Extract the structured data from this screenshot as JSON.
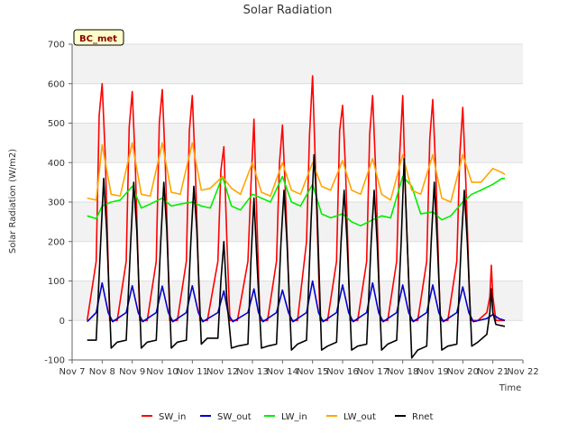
{
  "chart_data": {
    "type": "line",
    "title": "Solar Radiation",
    "site_label": "BC_met",
    "xlabel": "Time",
    "ylabel": "Solar Radiation (W/m2)",
    "ylim": [
      -100,
      700
    ],
    "yticks": [
      -100,
      0,
      100,
      200,
      300,
      400,
      500,
      600,
      700
    ],
    "xlim": [
      7,
      22
    ],
    "xticks": [
      7,
      8,
      9,
      10,
      11,
      12,
      13,
      14,
      15,
      16,
      17,
      18,
      19,
      20,
      21,
      22
    ],
    "xtick_labels": [
      "Nov 7",
      "Nov 8",
      "Nov 9",
      "Nov 10",
      "Nov 11",
      "Nov 12",
      "Nov 13",
      "Nov 14",
      "Nov 15",
      "Nov 16",
      "Nov 17",
      "Nov 18",
      "Nov 19",
      "Nov 20",
      "Nov 21",
      "Nov 22"
    ],
    "grid": true,
    "legend_position": "bottom",
    "series": [
      {
        "name": "SW_in",
        "color": "#ff0000",
        "x": [
          7.5,
          7.8,
          7.9,
          8.0,
          8.1,
          8.25,
          8.5,
          8.8,
          8.9,
          9.0,
          9.1,
          9.25,
          9.5,
          9.8,
          9.9,
          10.0,
          10.1,
          10.25,
          10.5,
          10.8,
          10.9,
          11.0,
          11.1,
          11.25,
          11.5,
          11.85,
          11.95,
          12.05,
          12.15,
          12.25,
          12.5,
          12.85,
          12.95,
          13.05,
          13.15,
          13.25,
          13.5,
          13.8,
          13.9,
          14.0,
          14.1,
          14.25,
          14.5,
          14.8,
          14.9,
          15.0,
          15.1,
          15.25,
          15.5,
          15.8,
          15.9,
          16.0,
          16.1,
          16.25,
          16.5,
          16.8,
          16.9,
          17.0,
          17.1,
          17.25,
          17.5,
          17.8,
          17.9,
          18.0,
          18.1,
          18.25,
          18.5,
          18.8,
          18.9,
          19.0,
          19.1,
          19.25,
          19.5,
          19.8,
          19.9,
          20.0,
          20.1,
          20.25,
          20.5,
          20.8,
          20.9,
          20.95,
          21.0,
          21.1,
          21.4
        ],
        "y": [
          0,
          150,
          520,
          600,
          420,
          0,
          0,
          150,
          490,
          580,
          400,
          0,
          0,
          150,
          500,
          585,
          400,
          0,
          0,
          150,
          480,
          570,
          380,
          0,
          0,
          150,
          380,
          440,
          200,
          0,
          0,
          150,
          340,
          510,
          250,
          0,
          0,
          150,
          400,
          495,
          320,
          0,
          0,
          200,
          470,
          620,
          380,
          0,
          0,
          150,
          480,
          545,
          380,
          0,
          0,
          150,
          470,
          570,
          380,
          0,
          0,
          150,
          420,
          570,
          300,
          0,
          0,
          150,
          460,
          560,
          380,
          0,
          0,
          150,
          420,
          540,
          350,
          0,
          0,
          20,
          60,
          140,
          60,
          0,
          0
        ]
      },
      {
        "name": "SW_out",
        "color": "#0000cc",
        "x": [
          7.5,
          7.8,
          8.0,
          8.2,
          8.35,
          8.8,
          9.0,
          9.2,
          9.35,
          9.8,
          10.0,
          10.2,
          10.35,
          10.8,
          11.0,
          11.2,
          11.35,
          11.85,
          12.05,
          12.2,
          12.35,
          12.85,
          13.05,
          13.2,
          13.35,
          13.8,
          14.0,
          14.2,
          14.35,
          14.8,
          15.0,
          15.2,
          15.35,
          15.8,
          16.0,
          16.2,
          16.35,
          16.8,
          17.0,
          17.2,
          17.35,
          17.8,
          18.0,
          18.2,
          18.35,
          18.8,
          19.0,
          19.2,
          19.35,
          19.8,
          20.0,
          20.2,
          20.35,
          20.8,
          21.0,
          21.2,
          21.4
        ],
        "y": [
          -3,
          20,
          95,
          20,
          -3,
          20,
          88,
          20,
          -3,
          20,
          87,
          20,
          -3,
          20,
          88,
          20,
          -3,
          20,
          75,
          15,
          -3,
          20,
          80,
          20,
          -3,
          20,
          77,
          20,
          -3,
          20,
          100,
          20,
          -3,
          20,
          90,
          20,
          -3,
          20,
          95,
          20,
          -3,
          20,
          90,
          20,
          -3,
          20,
          90,
          20,
          -3,
          20,
          85,
          20,
          -3,
          5,
          15,
          5,
          0
        ]
      },
      {
        "name": "LW_in",
        "color": "#00ee00",
        "x": [
          7.5,
          7.8,
          8.0,
          8.3,
          8.6,
          9.0,
          9.3,
          9.6,
          10.0,
          10.3,
          10.6,
          11.0,
          11.3,
          11.6,
          12.0,
          12.3,
          12.6,
          13.0,
          13.3,
          13.6,
          14.0,
          14.3,
          14.6,
          15.0,
          15.3,
          15.6,
          16.0,
          16.3,
          16.6,
          17.0,
          17.3,
          17.6,
          18.0,
          18.3,
          18.6,
          19.0,
          19.3,
          19.6,
          20.0,
          20.3,
          20.6,
          21.0,
          21.3,
          21.4
        ],
        "y": [
          265,
          258,
          290,
          300,
          305,
          340,
          285,
          295,
          310,
          290,
          295,
          300,
          290,
          285,
          365,
          290,
          280,
          320,
          310,
          300,
          365,
          300,
          290,
          345,
          270,
          260,
          270,
          250,
          240,
          255,
          265,
          260,
          365,
          340,
          270,
          275,
          255,
          265,
          300,
          320,
          330,
          345,
          360,
          360
        ]
      },
      {
        "name": "LW_out",
        "color": "#ffa500",
        "x": [
          7.5,
          7.8,
          8.0,
          8.3,
          8.6,
          9.0,
          9.3,
          9.6,
          10.0,
          10.3,
          10.6,
          11.0,
          11.3,
          11.6,
          12.0,
          12.3,
          12.6,
          13.0,
          13.3,
          13.6,
          14.0,
          14.3,
          14.6,
          15.0,
          15.3,
          15.6,
          16.0,
          16.3,
          16.6,
          17.0,
          17.3,
          17.6,
          18.0,
          18.3,
          18.6,
          19.0,
          19.3,
          19.6,
          20.0,
          20.3,
          20.6,
          21.0,
          21.3,
          21.4
        ],
        "y": [
          310,
          305,
          445,
          320,
          315,
          450,
          320,
          315,
          450,
          325,
          320,
          450,
          330,
          335,
          365,
          335,
          320,
          400,
          325,
          315,
          400,
          330,
          320,
          400,
          340,
          330,
          405,
          330,
          320,
          410,
          320,
          305,
          420,
          330,
          320,
          420,
          310,
          300,
          420,
          350,
          350,
          385,
          375,
          370
        ]
      },
      {
        "name": "Rnet",
        "color": "#000000",
        "x": [
          7.5,
          7.8,
          7.95,
          8.05,
          8.15,
          8.3,
          8.5,
          8.8,
          8.95,
          9.05,
          9.15,
          9.3,
          9.5,
          9.8,
          9.95,
          10.05,
          10.15,
          10.3,
          10.5,
          10.8,
          10.95,
          11.05,
          11.15,
          11.3,
          11.5,
          11.85,
          11.95,
          12.05,
          12.15,
          12.3,
          12.5,
          12.85,
          12.95,
          13.05,
          13.15,
          13.3,
          13.5,
          13.8,
          13.95,
          14.05,
          14.15,
          14.3,
          14.5,
          14.8,
          14.95,
          15.05,
          15.15,
          15.3,
          15.5,
          15.8,
          15.95,
          16.05,
          16.15,
          16.3,
          16.5,
          16.8,
          16.95,
          17.05,
          17.15,
          17.3,
          17.5,
          17.8,
          17.95,
          18.05,
          18.15,
          18.3,
          18.5,
          18.8,
          18.95,
          19.05,
          19.15,
          19.3,
          19.5,
          19.8,
          19.95,
          20.05,
          20.15,
          20.3,
          20.5,
          20.8,
          20.9,
          20.95,
          21.0,
          21.1,
          21.4
        ],
        "y": [
          -50,
          -50,
          200,
          360,
          230,
          -70,
          -55,
          -50,
          200,
          350,
          230,
          -70,
          -55,
          -50,
          200,
          350,
          230,
          -70,
          -55,
          -50,
          200,
          340,
          230,
          -60,
          -45,
          -45,
          100,
          200,
          50,
          -70,
          -65,
          -60,
          150,
          310,
          150,
          -70,
          -65,
          -60,
          200,
          330,
          200,
          -75,
          -60,
          -50,
          250,
          420,
          280,
          -75,
          -65,
          -55,
          200,
          330,
          200,
          -75,
          -65,
          -60,
          200,
          330,
          200,
          -75,
          -60,
          -50,
          200,
          410,
          200,
          -95,
          -75,
          -65,
          200,
          350,
          200,
          -75,
          -65,
          -60,
          200,
          330,
          200,
          -65,
          -55,
          -35,
          20,
          80,
          20,
          -10,
          -15
        ]
      }
    ]
  }
}
